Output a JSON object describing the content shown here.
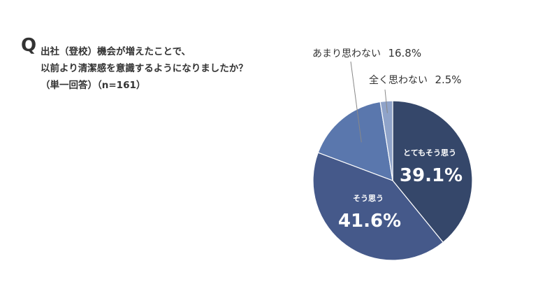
{
  "question": {
    "marker": "Q",
    "lines": [
      "出社（登校）機会が増えたことで、",
      "以前より清潔感を意識するようになりましたか？",
      "（単一回答）（n=161）"
    ]
  },
  "chart_data": {
    "type": "pie",
    "title": "",
    "start_angle": "12 o'clock, clockwise",
    "slices": [
      {
        "label": "とてもそう思う",
        "value": 39.1,
        "value_text": "39.1%",
        "color": "#35476a",
        "label_position": "inside"
      },
      {
        "label": "そう思う",
        "value": 41.6,
        "value_text": "41.6%",
        "color": "#45598a",
        "label_position": "inside"
      },
      {
        "label": "あまり思わない",
        "value": 16.8,
        "value_text": "16.8%",
        "color": "#5a77ad",
        "label_position": "outside"
      },
      {
        "label": "全く思わない",
        "value": 2.5,
        "value_text": "2.5%",
        "color": "#8fa3c9",
        "label_position": "outside"
      }
    ]
  }
}
